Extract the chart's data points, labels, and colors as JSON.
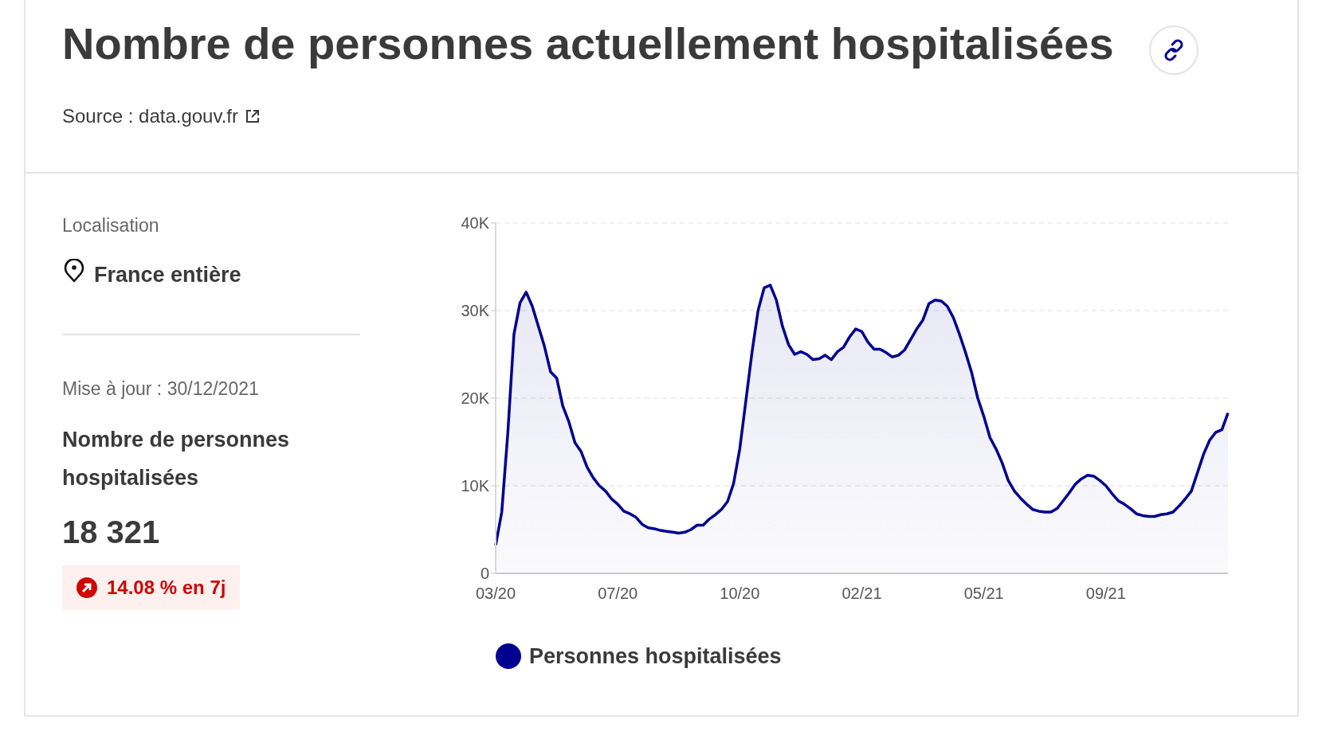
{
  "chart_data": {
    "type": "area",
    "title": "Nombre de personnes actuellement hospitalisées",
    "annotations": [
      "Source : data.gouv.fr",
      "Localisation",
      "France entière",
      "Mise à jour : 30/12/2021",
      "Nombre de personnes hospitalisées",
      "18 321",
      "14.08 % en 7j"
    ],
    "categories": [
      "03/20",
      null,
      null,
      null,
      null,
      null,
      null,
      null,
      null,
      null,
      null,
      null,
      null,
      null,
      null,
      null,
      null,
      null,
      null,
      null,
      "07/20",
      null,
      null,
      null,
      null,
      null,
      null,
      null,
      null,
      null,
      null,
      null,
      null,
      null,
      null,
      null,
      null,
      null,
      null,
      null,
      "10/20",
      null,
      null,
      null,
      null,
      null,
      null,
      null,
      null,
      null,
      null,
      null,
      null,
      null,
      null,
      null,
      null,
      null,
      null,
      null,
      "02/21",
      null,
      null,
      null,
      null,
      null,
      null,
      null,
      null,
      null,
      null,
      null,
      null,
      null,
      null,
      null,
      null,
      null,
      null,
      null,
      "05/21",
      null,
      null,
      null,
      null,
      null,
      null,
      null,
      null,
      null,
      null,
      null,
      null,
      null,
      null,
      null,
      null,
      null,
      null,
      null,
      "09/21",
      null,
      null,
      null,
      null,
      null,
      null,
      null,
      null,
      null,
      null,
      null,
      null,
      null,
      null,
      null,
      null,
      null,
      null,
      null,
      null
    ],
    "series": [
      {
        "name": "Personnes hospitalisées",
        "color": "#000091",
        "values": [
          3200,
          7000,
          16100,
          27300,
          30900,
          32100,
          30500,
          28200,
          25900,
          23000,
          22300,
          19100,
          17300,
          14900,
          13900,
          12100,
          10900,
          10000,
          9400,
          8500,
          7900,
          7100,
          6800,
          6400,
          5600,
          5200,
          5100,
          4900,
          4800,
          4700,
          4600,
          4700,
          5000,
          5500,
          5500,
          6200,
          6700,
          7300,
          8200,
          10300,
          14200,
          19700,
          25200,
          30000,
          32600,
          32900,
          31200,
          28200,
          26100,
          25000,
          25300,
          25000,
          24400,
          24500,
          24900,
          24400,
          25300,
          25800,
          27000,
          27900,
          27600,
          26400,
          25600,
          25600,
          25200,
          24700,
          24900,
          25500,
          26700,
          27900,
          28900,
          30800,
          31200,
          31100,
          30500,
          29200,
          27300,
          25200,
          22900,
          20000,
          17900,
          15500,
          14200,
          12600,
          10600,
          9400,
          8600,
          7900,
          7300,
          7100,
          7000,
          7000,
          7400,
          8300,
          9200,
          10200,
          10800,
          11200,
          11100,
          10600,
          10000,
          9100,
          8300,
          7900,
          7400,
          6800,
          6600,
          6500,
          6500,
          6700,
          6800,
          7000,
          7700,
          8500,
          9400,
          11500,
          13600,
          15200,
          16100,
          16400,
          18300
        ]
      }
    ],
    "ylim": [
      0,
      40000
    ],
    "yticks": [
      0,
      {
        "value": 10000,
        "label": "10K"
      },
      {
        "value": 20000,
        "label": "20K"
      },
      {
        "value": 30000,
        "label": "30K"
      },
      {
        "value": 40000,
        "label": "40K"
      }
    ],
    "grid": "y",
    "legend": "bottom",
    "marker": "none",
    "line_style": "solid"
  }
}
